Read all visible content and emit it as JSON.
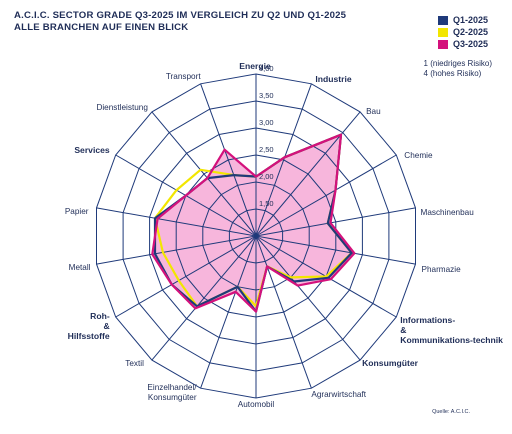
{
  "title_line1": "A.C.I.C. SECTOR GRADE Q3-2025 IM VERGLEICH ZU Q2 UND Q1-2025",
  "title_line2": "ALLE BRANCHEN AUF EINEN BLICK",
  "scale_note_line1": "1 (niedriges Risiko)",
  "scale_note_line2": "4 (hohes Risiko)",
  "source": "Quelle: A.C.I.C.",
  "colors": {
    "q1": "#1f3a7a",
    "q2": "#f2e600",
    "q3": "#d4117c",
    "q3_fill": "#f7b6dc",
    "grid": "#1f3a7a",
    "text": "#1f2d57"
  },
  "chart_data": {
    "type": "radar",
    "categories": [
      "Energie",
      "Industrie",
      "Bau",
      "Chemie",
      "Maschinenbau",
      "Pharmazie",
      "Informations- & Kommunikations-technik",
      "Konsumgüter",
      "Agrarwirtschaft",
      "Automobil",
      "Einzelhandel/ Konsumgüter",
      "Textil",
      "Roh- & Hilfsstoffe",
      "Metall",
      "Papier",
      "Services",
      "Dienstleistung",
      "Transport"
    ],
    "bold_categories": [
      "Energie",
      "Industrie",
      "Informations- & Kommunikations-technik",
      "Konsumgüter",
      "Roh- & Hilfsstoffe",
      "Services"
    ],
    "rlim": [
      1,
      4
    ],
    "ticks": [
      "1,50",
      "2,00",
      "2,50",
      "3,00",
      "3,50",
      "4,00"
    ],
    "tick_values": [
      1.5,
      2.0,
      2.5,
      3.0,
      3.5,
      4.0
    ],
    "series": [
      {
        "name": "Q1-2025",
        "values": [
          2.1,
          2.55,
          3.45,
          2.7,
          2.35,
          2.8,
          2.55,
          2.1,
          1.6,
          2.4,
          2.0,
          2.7,
          2.8,
          2.9,
          2.9,
          2.5,
          2.4,
          2.2
        ]
      },
      {
        "name": "Q2-2025",
        "values": [
          2.1,
          2.55,
          3.45,
          2.7,
          2.35,
          2.8,
          2.5,
          2.0,
          1.6,
          2.3,
          2.0,
          2.7,
          2.65,
          2.75,
          2.9,
          2.7,
          2.6,
          2.2
        ]
      },
      {
        "name": "Q3-2025",
        "values": [
          2.1,
          2.55,
          3.45,
          2.7,
          2.4,
          2.85,
          2.6,
          2.2,
          1.6,
          2.4,
          2.1,
          2.75,
          2.8,
          2.95,
          2.85,
          2.5,
          2.4,
          2.7
        ]
      }
    ]
  }
}
